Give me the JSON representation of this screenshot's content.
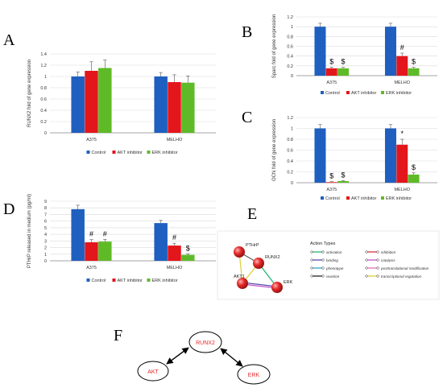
{
  "panels": {
    "A": "A",
    "B": "B",
    "C": "C",
    "D": "D",
    "E": "E",
    "F": "F"
  },
  "legend": {
    "control": "Control",
    "akt": "AKT inhibitor",
    "erk": "ERK inhibitor"
  },
  "colors": {
    "control": "#1f5fbf",
    "akt": "#e3161b",
    "erk": "#5fba27",
    "node": "#e52b2b",
    "gridline": "#d9d9d9",
    "axis": "#888888"
  },
  "chart_data": [
    {
      "id": "A",
      "type": "bar",
      "categories": [
        "A375",
        "MELHO"
      ],
      "series": [
        {
          "name": "Control",
          "values": [
            1.0,
            1.0
          ],
          "errors": [
            0.08,
            0.07
          ]
        },
        {
          "name": "AKT inhibitor",
          "values": [
            1.1,
            0.9
          ],
          "errors": [
            0.16,
            0.13
          ]
        },
        {
          "name": "ERK inhibitor",
          "values": [
            1.15,
            0.89
          ],
          "errors": [
            0.14,
            0.12
          ]
        }
      ],
      "ylabel": "RUNX2 fold of gene expression",
      "ylim": [
        0,
        1.4
      ],
      "yticks": [
        "0",
        "0.2",
        "0.4",
        "0.6",
        "0.8",
        "1",
        "1.2",
        "1.4"
      ],
      "annotations": [
        [
          "",
          "",
          ""
        ],
        [
          "",
          "",
          ""
        ]
      ],
      "grid": true,
      "legend": "bottom"
    },
    {
      "id": "B",
      "type": "bar",
      "categories": [
        "A375",
        "MELHO"
      ],
      "series": [
        {
          "name": "Control",
          "values": [
            1.0,
            1.0
          ],
          "errors": [
            0.07,
            0.07
          ]
        },
        {
          "name": "AKT inhibitor",
          "values": [
            0.15,
            0.4
          ],
          "errors": [
            0.02,
            0.06
          ]
        },
        {
          "name": "ERK inhibitor",
          "values": [
            0.15,
            0.15
          ],
          "errors": [
            0.02,
            0.02
          ]
        }
      ],
      "ylabel": "Sparc fold of gene expression",
      "ylim": [
        0,
        1.2
      ],
      "yticks": [
        "0",
        "0.2",
        "0.4",
        "0.6",
        "0.8",
        "1",
        "1.2"
      ],
      "annotations": [
        [
          "",
          "$",
          "$"
        ],
        [
          "",
          "#",
          "$"
        ]
      ],
      "grid": true,
      "legend": "bottom"
    },
    {
      "id": "C",
      "type": "bar",
      "categories": [
        "A375",
        "MELHO"
      ],
      "series": [
        {
          "name": "Control",
          "values": [
            1.0,
            1.0
          ],
          "errors": [
            0.07,
            0.07
          ]
        },
        {
          "name": "AKT inhibitor",
          "values": [
            0.01,
            0.7
          ],
          "errors": [
            0.01,
            0.1
          ]
        },
        {
          "name": "ERK inhibitor",
          "values": [
            0.03,
            0.15
          ],
          "errors": [
            0.01,
            0.03
          ]
        }
      ],
      "ylabel": "OCN fold of gene expression",
      "ylim": [
        0,
        1.2
      ],
      "yticks": [
        "0",
        "0.2",
        "0.4",
        "0.6",
        "0.8",
        "1",
        "1.2"
      ],
      "annotations": [
        [
          "",
          "$",
          "$"
        ],
        [
          "",
          "*",
          "$"
        ]
      ],
      "grid": true,
      "legend": "bottom"
    },
    {
      "id": "D",
      "type": "bar",
      "categories": [
        "A375",
        "MELHO"
      ],
      "series": [
        {
          "name": "Control",
          "values": [
            7.8,
            5.7
          ],
          "errors": [
            0.6,
            0.4
          ]
        },
        {
          "name": "AKT inhibitor",
          "values": [
            2.8,
            2.3
          ],
          "errors": [
            0.4,
            0.35
          ]
        },
        {
          "name": "ERK inhibitor",
          "values": [
            2.9,
            0.9
          ],
          "errors": [
            0.35,
            0.15
          ]
        }
      ],
      "ylabel": "PTHrP released in medium (pg/ml)",
      "ylim": [
        0,
        9
      ],
      "yticks": [
        "0",
        "1",
        "2",
        "3",
        "4",
        "5",
        "6",
        "7",
        "8",
        "9"
      ],
      "annotations": [
        [
          "",
          "#",
          "#"
        ],
        [
          "",
          "#",
          "$"
        ]
      ],
      "grid": true,
      "legend": "bottom"
    }
  ],
  "network": {
    "nodes": [
      "PTHrP",
      "RUNX2",
      "AKT1",
      "ERK"
    ],
    "title": "Action Types",
    "types": [
      {
        "label": "activation",
        "color": "#22b573"
      },
      {
        "label": "inhibition",
        "color": "#d9333f"
      },
      {
        "label": "binding",
        "color": "#5a4bb0"
      },
      {
        "label": "catalysis",
        "color": "#c355c6"
      },
      {
        "label": "phenotype",
        "color": "#2aa7c9"
      },
      {
        "label": "posttranslational modification",
        "color": "#e06fb2"
      },
      {
        "label": "reaction",
        "color": "#222222"
      },
      {
        "label": "transcriptional regulation",
        "color": "#d9cf38"
      }
    ]
  },
  "diagram": {
    "nodes": [
      "RUNX2",
      "AKT",
      "ERK"
    ]
  }
}
